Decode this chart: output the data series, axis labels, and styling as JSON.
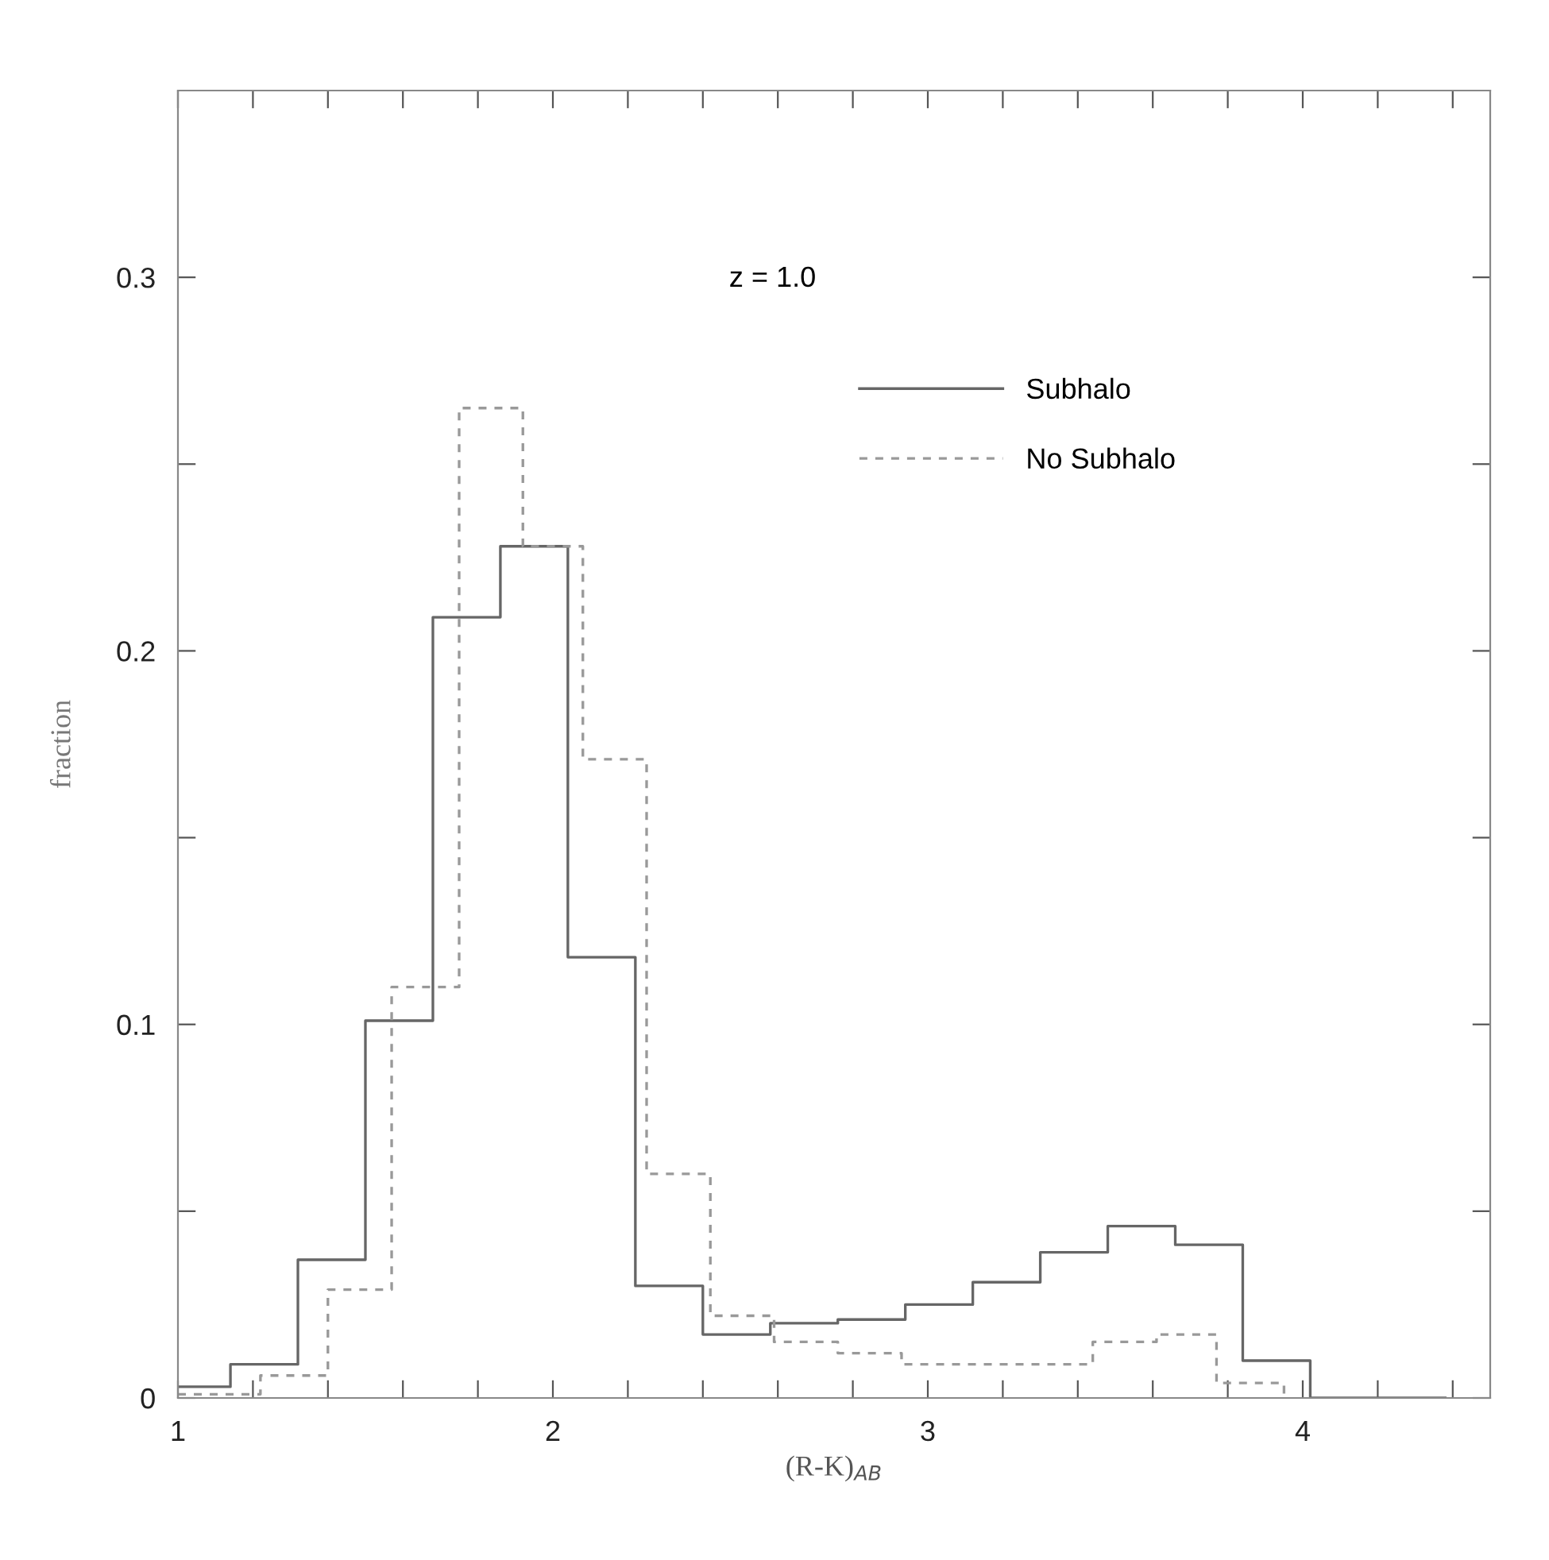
{
  "chart_data": {
    "type": "step",
    "xlabel": "(R-K)$_{AB}$",
    "ylabel": "fraction",
    "annotations": [
      "z = 1.0"
    ],
    "xlim": [
      1,
      4.5
    ],
    "ylim": [
      0,
      0.35
    ],
    "xticks": [
      1,
      {
        "value": 1.2,
        "label": null
      },
      {
        "value": 1.4,
        "label": null
      },
      {
        "value": 1.6,
        "label": null
      },
      {
        "value": 1.8,
        "label": null
      },
      2,
      {
        "value": 2.2,
        "label": null
      },
      {
        "value": 2.4,
        "label": null
      },
      {
        "value": 2.6,
        "label": null
      },
      {
        "value": 2.8,
        "label": null
      },
      3,
      {
        "value": 3.2,
        "label": null
      },
      {
        "value": 3.4,
        "label": null
      },
      {
        "value": 3.6,
        "label": null
      },
      {
        "value": 3.8,
        "label": null
      },
      4,
      {
        "value": 4.2,
        "label": null
      },
      {
        "value": 4.4,
        "label": null
      }
    ],
    "yticks": [
      0,
      {
        "value": 0.05,
        "label": null
      },
      0.1,
      {
        "value": 0.15,
        "label": null
      },
      0.2,
      {
        "value": 0.25,
        "label": null
      },
      0.3
    ],
    "legend": "top right",
    "grid": false,
    "marker": "none",
    "series": [
      {
        "name": "Subhalo",
        "color": "#666666",
        "line_style": "solid",
        "x": [
          1.0,
          1.14,
          1.32,
          1.5,
          1.68,
          1.86,
          2.04,
          2.22,
          2.4,
          2.58,
          2.76,
          2.94,
          3.12,
          3.3,
          3.48,
          3.66,
          3.84,
          4.02,
          4.2,
          4.38
        ],
        "values": [
          0.003,
          0.009,
          0.037,
          0.101,
          0.209,
          0.228,
          0.118,
          0.03,
          0.017,
          0.02,
          0.021,
          0.025,
          0.031,
          0.039,
          0.046,
          0.041,
          0.01,
          0,
          0,
          0
        ]
      },
      {
        "name": "No Subhalo",
        "color": "#999999",
        "line_style": "dashed",
        "x": [
          1.0,
          1.22,
          1.4,
          1.57,
          1.75,
          1.92,
          2.08,
          2.25,
          2.42,
          2.59,
          2.76,
          2.93,
          3.1,
          3.27,
          3.44,
          3.61,
          3.77,
          3.95
        ],
        "values": [
          0.001,
          0.006,
          0.029,
          0.11,
          0.265,
          0.228,
          0.171,
          0.06,
          0.022,
          0.015,
          0.012,
          0.009,
          0.009,
          0.009,
          0.015,
          0.017,
          0.004,
          0
        ]
      }
    ]
  }
}
